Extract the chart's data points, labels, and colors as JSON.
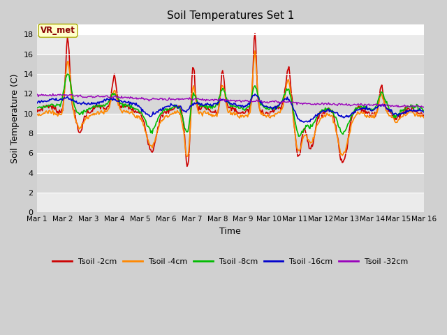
{
  "title": "Soil Temperatures Set 1",
  "xlabel": "Time",
  "ylabel": "Soil Temperature (C)",
  "ylim": [
    0,
    19
  ],
  "yticks": [
    0,
    2,
    4,
    6,
    8,
    10,
    12,
    14,
    16,
    18
  ],
  "xlim": [
    0,
    15
  ],
  "xtick_labels": [
    "Mar 1",
    "Mar 2",
    "Mar 3",
    "Mar 4",
    "Mar 5",
    "Mar 6",
    "Mar 7",
    "Mar 8",
    "Mar 9",
    "Mar 10",
    "Mar 11",
    "Mar 12",
    "Mar 13",
    "Mar 14",
    "Mar 15",
    "Mar 16"
  ],
  "colors": {
    "Tsoil -2cm": "#cc0000",
    "Tsoil -4cm": "#ff8800",
    "Tsoil -8cm": "#00bb00",
    "Tsoil -16cm": "#0000cc",
    "Tsoil -32cm": "#9900bb"
  },
  "annotation_text": "VR_met",
  "annotation_color": "#880000",
  "annotation_bg": "#ffffcc",
  "annotation_edge": "#aaaa00",
  "band_light": "#ebebeb",
  "band_dark": "#d8d8d8",
  "fig_bg": "#d0d0d0",
  "n_points": 480,
  "days": 15
}
